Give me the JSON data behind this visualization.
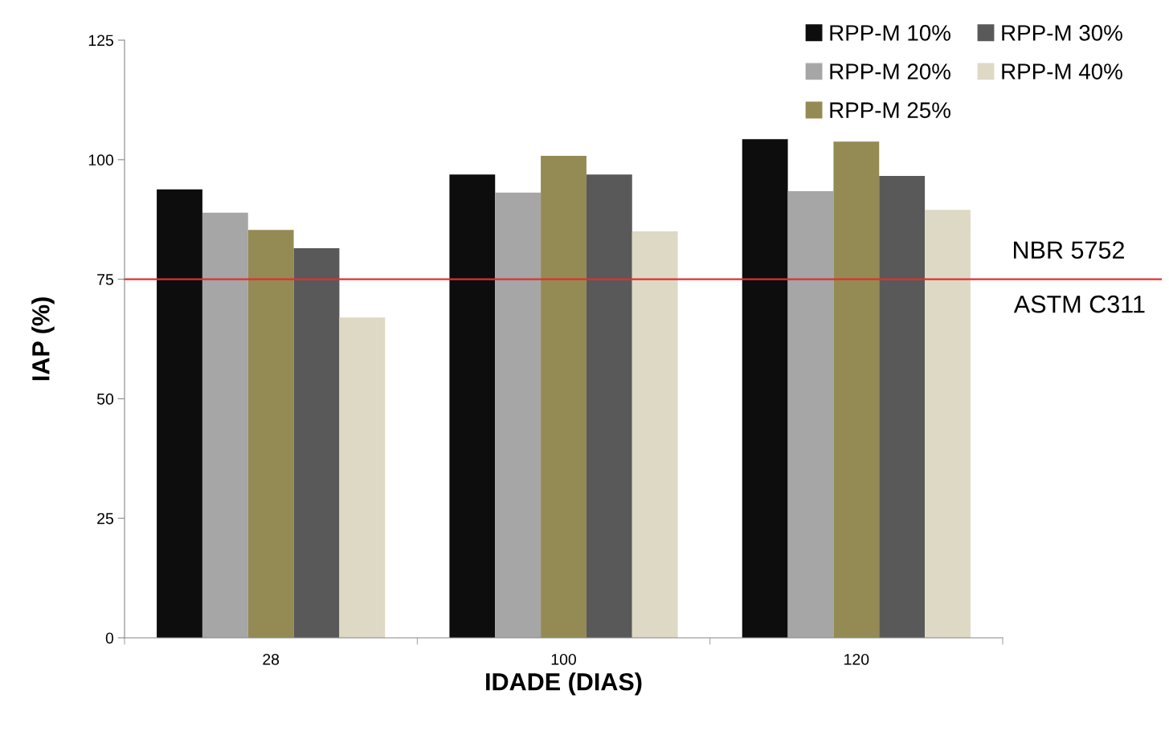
{
  "chart_data": {
    "type": "bar",
    "xlabel": "IDADE (DIAS)",
    "ylabel": "IAP (%)",
    "categories": [
      "28",
      "100",
      "120"
    ],
    "series": [
      {
        "name": "RPP-M 10%",
        "color": "#0d0d0d",
        "values": [
          93.8,
          96.9,
          104.3
        ]
      },
      {
        "name": "RPP-M 20%",
        "color": "#a6a6a6",
        "values": [
          88.9,
          93.1,
          93.4
        ]
      },
      {
        "name": "RPP-M 25%",
        "color": "#948a54",
        "values": [
          85.3,
          100.8,
          103.8
        ]
      },
      {
        "name": "RPP-M 30%",
        "color": "#595959",
        "values": [
          81.5,
          96.9,
          96.6
        ]
      },
      {
        "name": "RPP-M 40%",
        "color": "#ddd9c4",
        "values": [
          67.0,
          85.0,
          89.5
        ]
      }
    ],
    "ylim": [
      0,
      125
    ],
    "yticks": [
      0,
      25,
      50,
      75,
      100,
      125
    ],
    "grid": false,
    "legend": "top right",
    "ref_lines": [
      {
        "axis": "y",
        "value": 75,
        "label": "NBR 5752",
        "color": "#e03030"
      }
    ],
    "annotations": [
      {
        "text": "ASTM C311",
        "y": 75
      }
    ]
  }
}
